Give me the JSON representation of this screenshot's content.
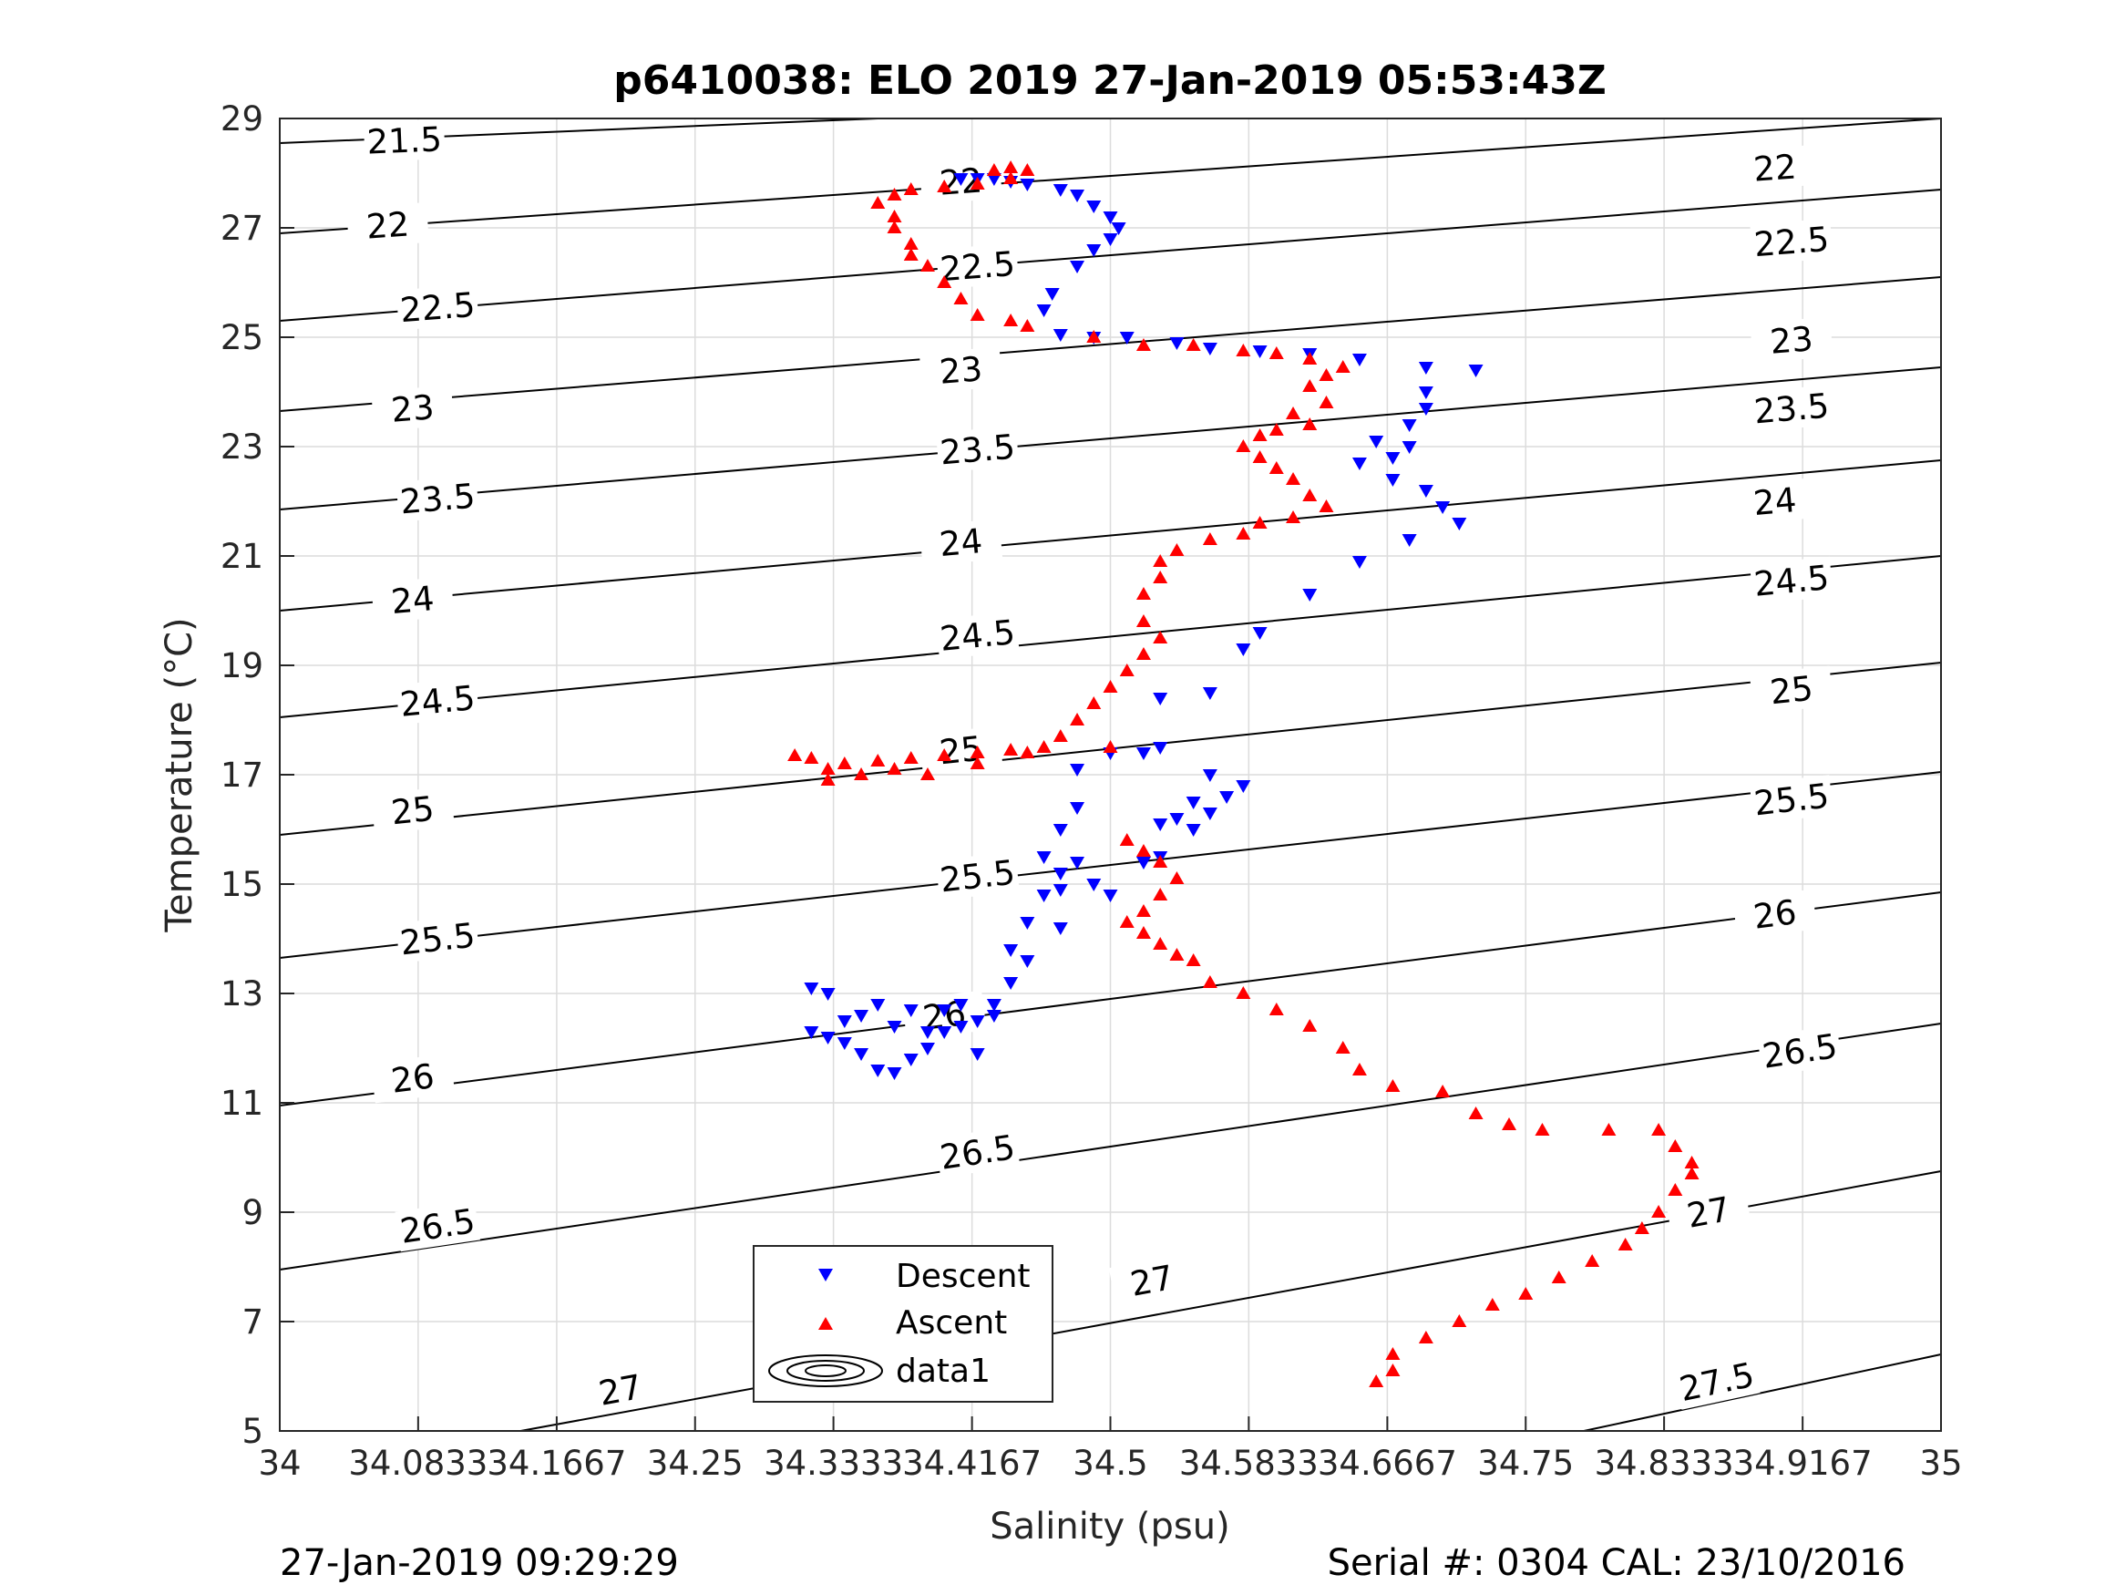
{
  "chart_data": {
    "type": "scatter",
    "title": "p6410038: ELO 2019 27-Jan-2019 05:53:43Z",
    "xlabel": "Salinity (psu)",
    "ylabel": "Temperature (°C)",
    "xlim": [
      34,
      35
    ],
    "ylim": [
      5,
      29
    ],
    "grid": true,
    "xticks": [
      34,
      34.0833,
      34.1667,
      34.25,
      34.3333,
      34.4167,
      34.5,
      34.5833,
      34.6667,
      34.75,
      34.8333,
      34.9167,
      35
    ],
    "xtick_labels": [
      "34",
      "34.0833",
      "34.1667",
      "34.25",
      "34.3333",
      "34.4167",
      "34.5",
      "34.5833",
      "34.6667",
      "34.75",
      "34.8333",
      "34.9167",
      "35"
    ],
    "yticks": [
      5,
      7,
      9,
      11,
      13,
      15,
      17,
      19,
      21,
      23,
      25,
      27,
      29
    ],
    "ytick_labels": [
      "5",
      "7",
      "9",
      "11",
      "13",
      "15",
      "17",
      "19",
      "21",
      "23",
      "25",
      "27",
      "29"
    ],
    "legend": {
      "placement": "bottom-center",
      "entries": [
        "Descent",
        "Ascent",
        "data1"
      ]
    },
    "series": [
      {
        "name": "Descent",
        "color": "#0000ff",
        "marker": "triangle-down",
        "points": [
          [
            34.41,
            27.9
          ],
          [
            34.42,
            27.9
          ],
          [
            34.43,
            27.9
          ],
          [
            34.44,
            27.85
          ],
          [
            34.45,
            27.8
          ],
          [
            34.47,
            27.7
          ],
          [
            34.48,
            27.6
          ],
          [
            34.49,
            27.4
          ],
          [
            34.5,
            27.2
          ],
          [
            34.505,
            27.0
          ],
          [
            34.5,
            26.8
          ],
          [
            34.49,
            26.6
          ],
          [
            34.48,
            26.3
          ],
          [
            34.465,
            25.8
          ],
          [
            34.46,
            25.5
          ],
          [
            34.47,
            25.05
          ],
          [
            34.49,
            25.0
          ],
          [
            34.51,
            25.0
          ],
          [
            34.54,
            24.9
          ],
          [
            34.56,
            24.8
          ],
          [
            34.59,
            24.75
          ],
          [
            34.62,
            24.7
          ],
          [
            34.65,
            24.6
          ],
          [
            34.69,
            24.45
          ],
          [
            34.72,
            24.4
          ],
          [
            34.69,
            24.0
          ],
          [
            34.69,
            23.7
          ],
          [
            34.68,
            23.4
          ],
          [
            34.66,
            23.1
          ],
          [
            34.68,
            23.0
          ],
          [
            34.67,
            22.8
          ],
          [
            34.65,
            22.7
          ],
          [
            34.67,
            22.4
          ],
          [
            34.69,
            22.2
          ],
          [
            34.7,
            21.9
          ],
          [
            34.71,
            21.6
          ],
          [
            34.68,
            21.3
          ],
          [
            34.65,
            20.9
          ],
          [
            34.62,
            20.3
          ],
          [
            34.59,
            19.6
          ],
          [
            34.58,
            19.3
          ],
          [
            34.56,
            18.5
          ],
          [
            34.53,
            18.4
          ],
          [
            34.53,
            17.5
          ],
          [
            34.52,
            17.4
          ],
          [
            34.5,
            17.4
          ],
          [
            34.48,
            17.1
          ],
          [
            34.48,
            16.4
          ],
          [
            34.47,
            16.0
          ],
          [
            34.46,
            15.5
          ],
          [
            34.47,
            15.2
          ],
          [
            34.49,
            15.0
          ],
          [
            34.5,
            14.8
          ],
          [
            34.47,
            14.2
          ],
          [
            34.45,
            13.6
          ],
          [
            34.44,
            13.2
          ],
          [
            34.43,
            12.8
          ],
          [
            34.42,
            12.5
          ],
          [
            34.41,
            12.4
          ],
          [
            34.4,
            12.3
          ],
          [
            34.39,
            12.0
          ],
          [
            34.38,
            11.8
          ],
          [
            34.37,
            11.55
          ],
          [
            34.36,
            11.6
          ],
          [
            34.35,
            11.9
          ],
          [
            34.34,
            12.1
          ],
          [
            34.33,
            12.2
          ],
          [
            34.32,
            12.3
          ],
          [
            34.32,
            13.1
          ],
          [
            34.33,
            13.0
          ],
          [
            34.34,
            12.5
          ],
          [
            34.35,
            12.6
          ],
          [
            34.36,
            12.8
          ],
          [
            34.37,
            12.4
          ],
          [
            34.38,
            12.7
          ],
          [
            34.39,
            12.3
          ],
          [
            34.4,
            12.7
          ],
          [
            34.41,
            12.8
          ],
          [
            34.42,
            11.9
          ],
          [
            34.43,
            12.6
          ],
          [
            34.44,
            13.8
          ],
          [
            34.45,
            14.3
          ],
          [
            34.46,
            14.8
          ],
          [
            34.47,
            14.9
          ],
          [
            34.48,
            15.4
          ],
          [
            34.52,
            15.4
          ],
          [
            34.53,
            15.5
          ],
          [
            34.55,
            16.0
          ],
          [
            34.56,
            16.3
          ],
          [
            34.57,
            16.6
          ],
          [
            34.58,
            16.8
          ],
          [
            34.56,
            17.0
          ],
          [
            34.55,
            16.5
          ],
          [
            34.54,
            16.2
          ],
          [
            34.53,
            16.1
          ]
        ]
      },
      {
        "name": "Ascent",
        "color": "#ff0000",
        "marker": "triangle-up",
        "points": [
          [
            34.43,
            28.05
          ],
          [
            34.44,
            28.1
          ],
          [
            34.45,
            28.05
          ],
          [
            34.44,
            27.9
          ],
          [
            34.42,
            27.8
          ],
          [
            34.4,
            27.75
          ],
          [
            34.38,
            27.7
          ],
          [
            34.37,
            27.6
          ],
          [
            34.36,
            27.45
          ],
          [
            34.37,
            27.2
          ],
          [
            34.37,
            27.0
          ],
          [
            34.38,
            26.7
          ],
          [
            34.38,
            26.5
          ],
          [
            34.39,
            26.3
          ],
          [
            34.4,
            26.0
          ],
          [
            34.41,
            25.7
          ],
          [
            34.42,
            25.4
          ],
          [
            34.44,
            25.3
          ],
          [
            34.45,
            25.2
          ],
          [
            34.49,
            25.0
          ],
          [
            34.52,
            24.85
          ],
          [
            34.55,
            24.85
          ],
          [
            34.58,
            24.75
          ],
          [
            34.6,
            24.7
          ],
          [
            34.62,
            24.6
          ],
          [
            34.64,
            24.45
          ],
          [
            34.63,
            24.3
          ],
          [
            34.62,
            24.1
          ],
          [
            34.63,
            23.8
          ],
          [
            34.61,
            23.6
          ],
          [
            34.62,
            23.4
          ],
          [
            34.6,
            23.3
          ],
          [
            34.59,
            23.2
          ],
          [
            34.58,
            23.0
          ],
          [
            34.59,
            22.8
          ],
          [
            34.6,
            22.6
          ],
          [
            34.61,
            22.4
          ],
          [
            34.62,
            22.1
          ],
          [
            34.63,
            21.9
          ],
          [
            34.61,
            21.7
          ],
          [
            34.59,
            21.6
          ],
          [
            34.58,
            21.4
          ],
          [
            34.56,
            21.3
          ],
          [
            34.54,
            21.1
          ],
          [
            34.53,
            20.9
          ],
          [
            34.53,
            20.6
          ],
          [
            34.52,
            20.3
          ],
          [
            34.52,
            19.8
          ],
          [
            34.53,
            19.5
          ],
          [
            34.52,
            19.2
          ],
          [
            34.51,
            18.9
          ],
          [
            34.5,
            18.6
          ],
          [
            34.49,
            18.3
          ],
          [
            34.48,
            18.0
          ],
          [
            34.47,
            17.7
          ],
          [
            34.46,
            17.5
          ],
          [
            34.44,
            17.45
          ],
          [
            34.42,
            17.4
          ],
          [
            34.4,
            17.35
          ],
          [
            34.38,
            17.3
          ],
          [
            34.36,
            17.25
          ],
          [
            34.34,
            17.2
          ],
          [
            34.33,
            17.1
          ],
          [
            34.32,
            17.3
          ],
          [
            34.31,
            17.35
          ],
          [
            34.33,
            16.9
          ],
          [
            34.35,
            17.0
          ],
          [
            34.37,
            17.1
          ],
          [
            34.39,
            17.0
          ],
          [
            34.42,
            17.2
          ],
          [
            34.45,
            17.4
          ],
          [
            34.5,
            17.5
          ],
          [
            34.51,
            15.8
          ],
          [
            34.52,
            15.6
          ],
          [
            34.53,
            15.4
          ],
          [
            34.54,
            15.1
          ],
          [
            34.53,
            14.8
          ],
          [
            34.52,
            14.5
          ],
          [
            34.51,
            14.3
          ],
          [
            34.52,
            14.1
          ],
          [
            34.53,
            13.9
          ],
          [
            34.54,
            13.7
          ],
          [
            34.55,
            13.6
          ],
          [
            34.56,
            13.2
          ],
          [
            34.58,
            13.0
          ],
          [
            34.6,
            12.7
          ],
          [
            34.62,
            12.4
          ],
          [
            34.64,
            12.0
          ],
          [
            34.65,
            11.6
          ],
          [
            34.67,
            11.3
          ],
          [
            34.7,
            11.2
          ],
          [
            34.72,
            10.8
          ],
          [
            34.74,
            10.6
          ],
          [
            34.76,
            10.5
          ],
          [
            34.8,
            10.5
          ],
          [
            34.83,
            10.5
          ],
          [
            34.84,
            10.2
          ],
          [
            34.85,
            9.9
          ],
          [
            34.85,
            9.7
          ],
          [
            34.84,
            9.4
          ],
          [
            34.83,
            9.0
          ],
          [
            34.82,
            8.7
          ],
          [
            34.81,
            8.4
          ],
          [
            34.79,
            8.1
          ],
          [
            34.77,
            7.8
          ],
          [
            34.75,
            7.5
          ],
          [
            34.73,
            7.3
          ],
          [
            34.71,
            7.0
          ],
          [
            34.69,
            6.7
          ],
          [
            34.67,
            6.4
          ],
          [
            34.67,
            6.1
          ],
          [
            34.66,
            5.9
          ]
        ]
      }
    ],
    "contours": {
      "line_color": "#000000",
      "label_values": [
        "21.5",
        "22",
        "22.5",
        "23",
        "23.5",
        "24",
        "24.5",
        "25",
        "25.5",
        "26",
        "26.5",
        "27",
        "27.5"
      ]
    }
  },
  "footer": {
    "left": "27-Jan-2019 09:29:29",
    "right": "Serial #: 0304  CAL: 23/10/2016"
  }
}
